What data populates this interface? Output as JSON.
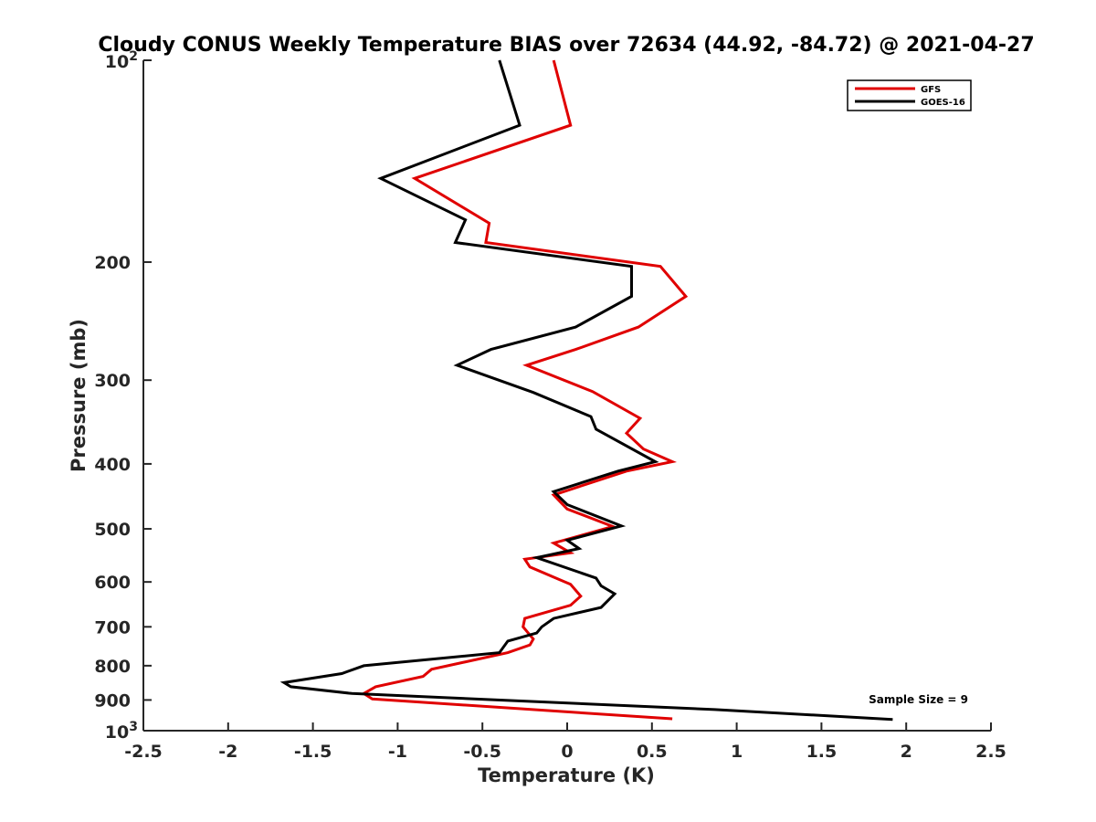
{
  "chart_data": {
    "type": "line",
    "title": "Cloudy CONUS Weekly Temperature BIAS over 72634 (44.92, -84.72) @ 2021-04-27",
    "xlabel": "Temperature (K)",
    "ylabel": "Pressure (mb)",
    "xlim": [
      -2.5,
      2.5
    ],
    "ylim": [
      100,
      1000
    ],
    "y_scale": "log",
    "y_reversed": true,
    "x_ticks": [
      "-2.5",
      "-2",
      "-1.5",
      "-1",
      "-0.5",
      "0",
      "0.5",
      "1",
      "1.5",
      "2",
      "2.5"
    ],
    "x_tick_values": [
      -2.5,
      -2,
      -1.5,
      -1,
      -0.5,
      0,
      0.5,
      1,
      1.5,
      2,
      2.5
    ],
    "y_ticks": [
      {
        "value": 200,
        "label": "200"
      },
      {
        "value": 300,
        "label": "300"
      },
      {
        "value": 400,
        "label": "400"
      },
      {
        "value": 500,
        "label": "500"
      },
      {
        "value": 600,
        "label": "600"
      },
      {
        "value": 700,
        "label": "700"
      },
      {
        "value": 800,
        "label": "800"
      },
      {
        "value": 900,
        "label": "900"
      }
    ],
    "y_power_ticks": [
      {
        "value": 100,
        "base": "10",
        "exp": "2"
      },
      {
        "value": 1000,
        "base": "10",
        "exp": "3"
      }
    ],
    "grid": false,
    "legend_position": "top-right",
    "annotation": "Sample Size = 9",
    "series": [
      {
        "name": "GFS",
        "color": "#e00000",
        "points": [
          [
            -0.08,
            100
          ],
          [
            0.02,
            125
          ],
          [
            -0.9,
            150
          ],
          [
            -0.46,
            175
          ],
          [
            -0.48,
            187
          ],
          [
            0.55,
            203
          ],
          [
            0.7,
            225
          ],
          [
            0.42,
            250
          ],
          [
            0.05,
            270
          ],
          [
            -0.24,
            285
          ],
          [
            0.15,
            312
          ],
          [
            0.43,
            342
          ],
          [
            0.35,
            360
          ],
          [
            0.45,
            380
          ],
          [
            0.62,
            397
          ],
          [
            0.35,
            410
          ],
          [
            -0.08,
            445
          ],
          [
            0.0,
            467
          ],
          [
            0.27,
            496
          ],
          [
            -0.08,
            525
          ],
          [
            0.02,
            543
          ],
          [
            -0.25,
            555
          ],
          [
            -0.22,
            570
          ],
          [
            0.02,
            605
          ],
          [
            0.08,
            630
          ],
          [
            0.02,
            650
          ],
          [
            -0.25,
            680
          ],
          [
            -0.26,
            700
          ],
          [
            -0.2,
            730
          ],
          [
            -0.22,
            745
          ],
          [
            -0.35,
            765
          ],
          [
            -0.8,
            810
          ],
          [
            -0.85,
            830
          ],
          [
            -1.13,
            860
          ],
          [
            -1.2,
            880
          ],
          [
            -1.15,
            897
          ],
          [
            0.62,
            960
          ]
        ]
      },
      {
        "name": "GOES-16",
        "color": "#000000",
        "points": [
          [
            -0.4,
            100
          ],
          [
            -0.28,
            125
          ],
          [
            -1.1,
            150
          ],
          [
            -0.6,
            173
          ],
          [
            -0.66,
            187
          ],
          [
            0.38,
            203
          ],
          [
            0.38,
            225
          ],
          [
            0.05,
            250
          ],
          [
            -0.45,
            270
          ],
          [
            -0.65,
            285
          ],
          [
            -0.2,
            313
          ],
          [
            0.14,
            340
          ],
          [
            0.17,
            355
          ],
          [
            0.52,
            397
          ],
          [
            0.3,
            410
          ],
          [
            -0.08,
            440
          ],
          [
            0.0,
            460
          ],
          [
            0.32,
            495
          ],
          [
            0.0,
            520
          ],
          [
            0.07,
            535
          ],
          [
            -0.18,
            552
          ],
          [
            0.17,
            592
          ],
          [
            0.2,
            608
          ],
          [
            0.28,
            625
          ],
          [
            0.2,
            655
          ],
          [
            -0.08,
            680
          ],
          [
            -0.15,
            700
          ],
          [
            -0.18,
            715
          ],
          [
            -0.35,
            735
          ],
          [
            -0.4,
            765
          ],
          [
            -1.2,
            800
          ],
          [
            -1.33,
            822
          ],
          [
            -1.67,
            848
          ],
          [
            -1.63,
            860
          ],
          [
            -1.27,
            880
          ],
          [
            0.87,
            930
          ],
          [
            1.92,
            962
          ]
        ]
      }
    ]
  }
}
